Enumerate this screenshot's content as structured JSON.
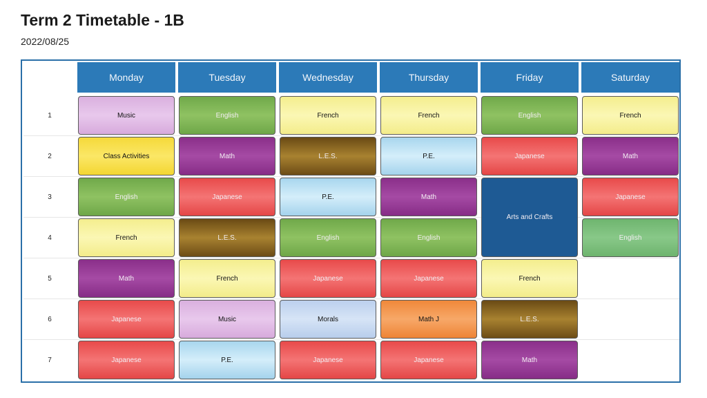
{
  "header": {
    "title": "Term 2 Timetable - 1B",
    "date": "2022/08/25"
  },
  "days": [
    "Monday",
    "Tuesday",
    "Wednesday",
    "Thursday",
    "Friday",
    "Saturday"
  ],
  "periods": [
    "1",
    "2",
    "3",
    "4",
    "5",
    "6",
    "7"
  ],
  "schedule": {
    "monday": [
      "Music",
      "Class Activities",
      "English",
      "French",
      "Math",
      "Japanese",
      "Japanese"
    ],
    "tuesday": [
      "English",
      "Math",
      "Japanese",
      "L.E.S.",
      "French",
      "Music",
      "P.E."
    ],
    "wednesday": [
      "French",
      "L.E.S.",
      "P.E.",
      "English",
      "Japanese",
      "Morals",
      "Japanese"
    ],
    "thursday": [
      "French",
      "P.E.",
      "Math",
      "English",
      "Japanese",
      "Math J",
      "Japanese"
    ],
    "friday": [
      "English",
      "Japanese",
      "Arts and Crafts",
      "French",
      "L.E.S.",
      "Math"
    ],
    "saturday": [
      "French",
      "Math",
      "Japanese",
      "English"
    ]
  },
  "colors": {
    "header": "#2c7ab8",
    "border": "#2a6fa8",
    "music": "#dab0df",
    "english": "#8fc262",
    "french": "#fbf7b4",
    "class_activities": "#f5d93a",
    "math": "#a54aa4",
    "les": "#a88230",
    "pe": "#d4eefa",
    "japanese": "#f47474",
    "morals": "#d6e4f6",
    "math_j": "#f7a868",
    "arts_and_crafts": "#1e5a94"
  }
}
